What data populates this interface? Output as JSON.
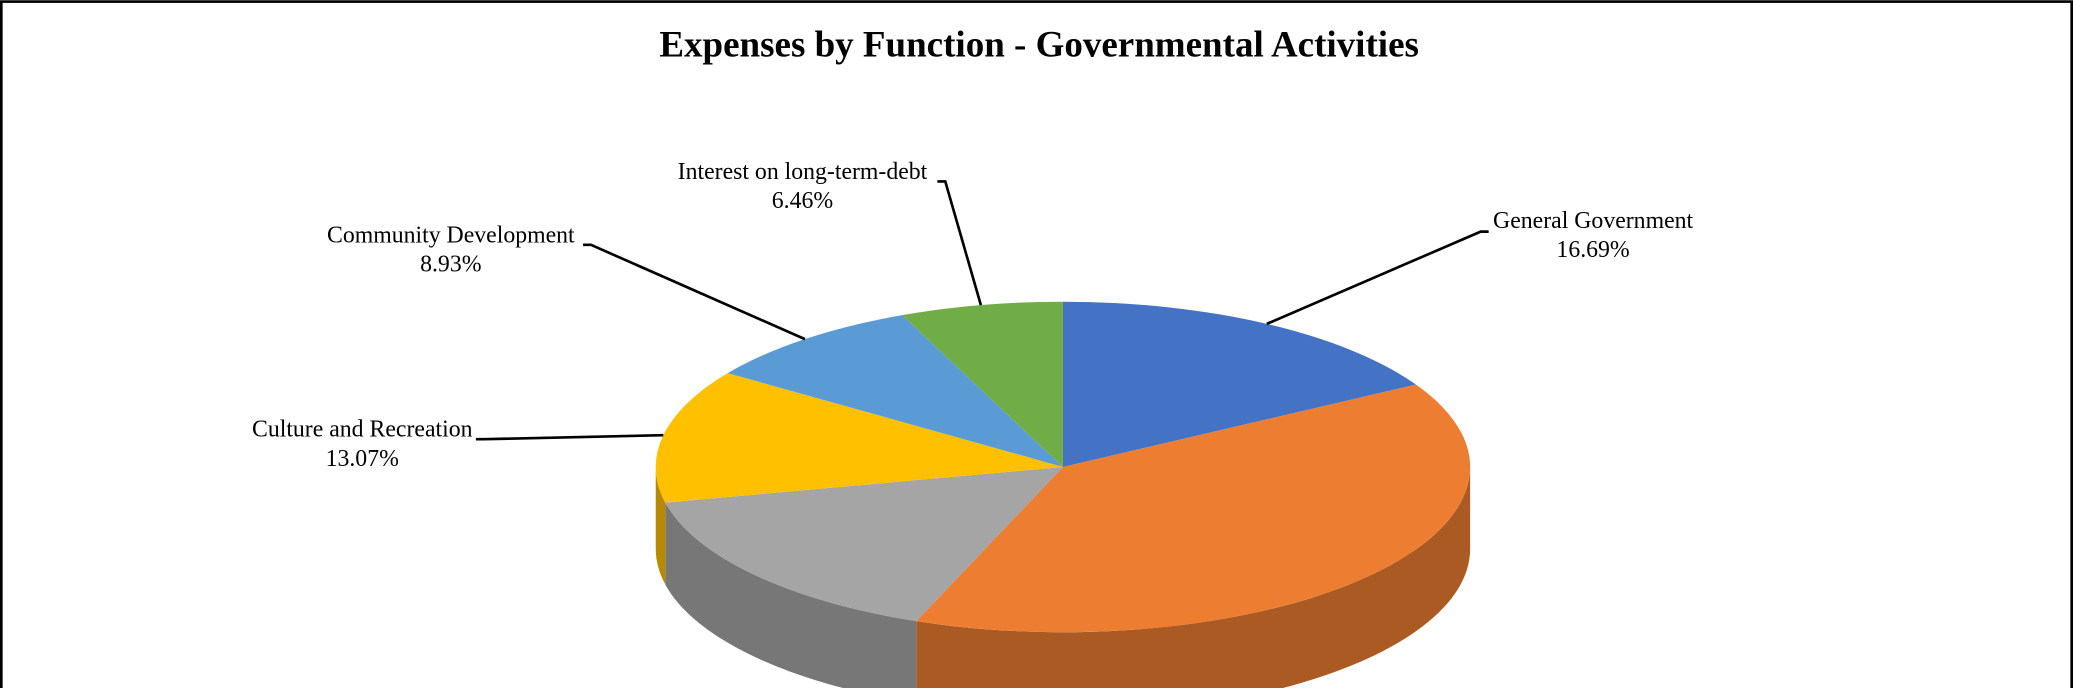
{
  "chart_data": {
    "type": "pie3d",
    "title": "Expenses by Function - Governmental Activities",
    "categories": [
      "General Government",
      null,
      null,
      "Culture and Recreation",
      "Community Development",
      "Interest on long-term-debt"
    ],
    "values": [
      16.69,
      39.17,
      15.68,
      13.07,
      8.93,
      6.46
    ],
    "value_labels": [
      "16.69%",
      null,
      null,
      "13.07%",
      "8.93%",
      "6.46%"
    ],
    "colors": [
      "#4472c4",
      "#ed7d31",
      "#a5a5a5",
      "#ffc000",
      "#5b9bd5",
      "#70ad47"
    ]
  }
}
